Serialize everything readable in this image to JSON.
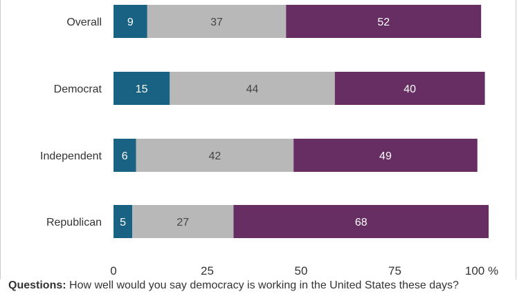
{
  "chart_data": {
    "type": "bar",
    "orientation": "horizontal",
    "stacked": true,
    "categories": [
      "Overall",
      "Democrat",
      "Independent",
      "Republican"
    ],
    "series": [
      {
        "values": [
          9,
          15,
          6,
          5
        ],
        "color": "#1a6283"
      },
      {
        "values": [
          37,
          44,
          42,
          27
        ],
        "color": "#b8b8b8"
      },
      {
        "values": [
          52,
          40,
          49,
          68
        ],
        "color": "#662e63"
      }
    ],
    "xlim": [
      0,
      100
    ],
    "xticks": [
      0,
      25,
      50,
      75,
      100
    ],
    "x_unit": "%",
    "grid": false,
    "legend": "none"
  },
  "footnote": {
    "label": "Questions:",
    "text": "How well would you say democracy is working in the United States these days?"
  }
}
